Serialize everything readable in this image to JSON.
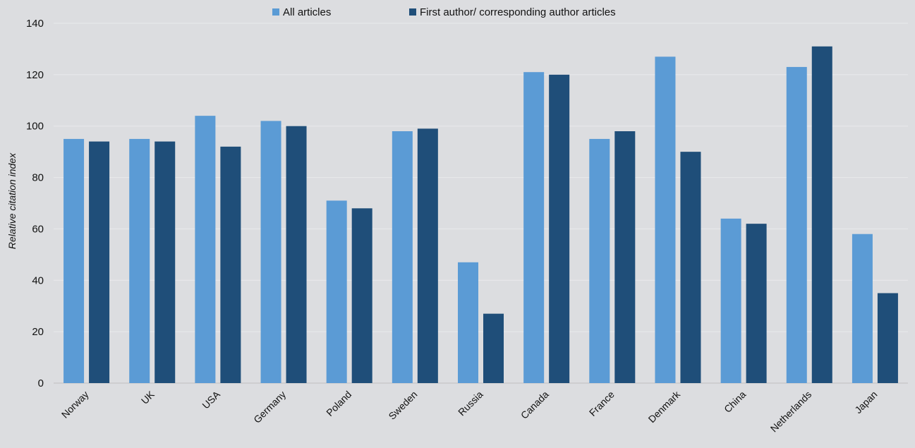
{
  "chart_data": {
    "type": "bar",
    "title": "",
    "xlabel": "",
    "ylabel": "Relative citation index",
    "ylim": [
      0,
      140
    ],
    "yticks": [
      0,
      20,
      40,
      60,
      80,
      100,
      120,
      140
    ],
    "grid": true,
    "legend_position": "top-center",
    "categories": [
      "Norway",
      "UK",
      "USA",
      "Germany",
      "Poland",
      "Sweden",
      "Russia",
      "Canada",
      "France",
      "Denmark",
      "China",
      "Netherlands",
      "Japan"
    ],
    "series": [
      {
        "name": "All articles",
        "color": "#5b9bd5",
        "values": [
          95,
          95,
          104,
          102,
          71,
          98,
          47,
          121,
          95,
          127,
          64,
          123,
          58
        ]
      },
      {
        "name": "First author/ corresponding author articles",
        "color": "#1f4e79",
        "values": [
          94,
          94,
          92,
          100,
          68,
          99,
          27,
          120,
          98,
          90,
          62,
          131,
          35
        ]
      }
    ]
  }
}
